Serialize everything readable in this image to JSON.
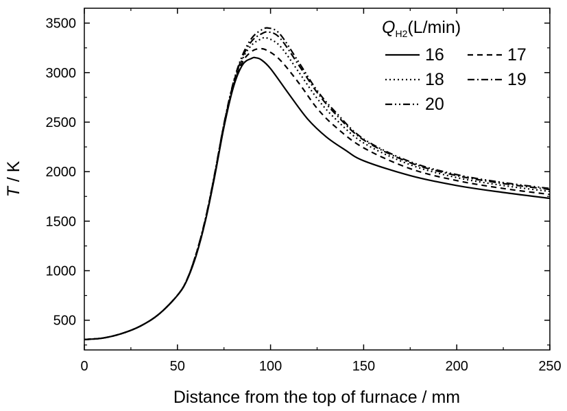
{
  "chart_data": {
    "type": "line",
    "xlabel": "Distance from the top of furnace / mm",
    "ylabel_italic": "T",
    "ylabel_rest": " / K",
    "xlim": [
      0,
      250
    ],
    "ylim": [
      200,
      3650
    ],
    "xticks": [
      "0",
      "50",
      "100",
      "150",
      "200",
      "250"
    ],
    "yticks": [
      "500",
      "1000",
      "1500",
      "2000",
      "2500",
      "3000",
      "3500"
    ],
    "grid": false,
    "legend": {
      "position": "top-right",
      "title_italic": "Q",
      "title_sub": "H2",
      "title_rest": "(L/min)"
    },
    "series": [
      {
        "name": "16",
        "dash": "solid",
        "x": [
          0,
          10,
          20,
          30,
          40,
          50,
          55,
          60,
          65,
          70,
          75,
          80,
          85,
          90,
          92,
          95,
          100,
          110,
          120,
          130,
          140,
          150,
          175,
          200,
          225,
          250
        ],
        "y": [
          305,
          320,
          365,
          440,
          560,
          750,
          900,
          1150,
          1500,
          1950,
          2450,
          2850,
          3080,
          3145,
          3150,
          3130,
          3040,
          2780,
          2530,
          2350,
          2220,
          2110,
          1960,
          1860,
          1790,
          1730
        ]
      },
      {
        "name": "17",
        "dash": "8,6",
        "x": [
          0,
          10,
          20,
          30,
          40,
          50,
          55,
          60,
          65,
          70,
          75,
          80,
          85,
          90,
          94,
          98,
          105,
          115,
          125,
          135,
          150,
          175,
          200,
          225,
          250
        ],
        "y": [
          305,
          320,
          365,
          440,
          560,
          752,
          905,
          1160,
          1510,
          1960,
          2460,
          2860,
          3110,
          3215,
          3240,
          3225,
          3130,
          2900,
          2640,
          2450,
          2240,
          2030,
          1910,
          1830,
          1770
        ]
      },
      {
        "name": "18",
        "dash": "2,4",
        "x": [
          0,
          10,
          20,
          30,
          40,
          50,
          55,
          60,
          65,
          70,
          75,
          80,
          85,
          90,
          95,
          98,
          105,
          115,
          125,
          135,
          150,
          175,
          200,
          225,
          250
        ],
        "y": [
          305,
          320,
          365,
          440,
          560,
          752,
          905,
          1165,
          1515,
          1970,
          2470,
          2880,
          3140,
          3280,
          3340,
          3350,
          3270,
          3010,
          2740,
          2530,
          2290,
          2070,
          1940,
          1860,
          1800
        ]
      },
      {
        "name": "19",
        "dash": "10,4,2,4",
        "x": [
          0,
          10,
          20,
          30,
          40,
          50,
          55,
          60,
          65,
          70,
          75,
          80,
          85,
          90,
          95,
          99,
          105,
          115,
          125,
          135,
          150,
          175,
          200,
          225,
          250
        ],
        "y": [
          305,
          320,
          365,
          440,
          560,
          752,
          905,
          1168,
          1520,
          1975,
          2480,
          2890,
          3160,
          3320,
          3390,
          3410,
          3350,
          3080,
          2800,
          2580,
          2320,
          2090,
          1960,
          1880,
          1820
        ]
      },
      {
        "name": "20",
        "dash": "10,4,2,4,2,4",
        "x": [
          0,
          10,
          20,
          30,
          40,
          50,
          55,
          60,
          65,
          70,
          75,
          80,
          85,
          90,
          95,
          99,
          105,
          115,
          125,
          135,
          150,
          175,
          200,
          225,
          250
        ],
        "y": [
          305,
          320,
          365,
          440,
          560,
          752,
          905,
          1170,
          1522,
          1980,
          2485,
          2900,
          3180,
          3350,
          3430,
          3450,
          3390,
          3110,
          2820,
          2600,
          2330,
          2100,
          1970,
          1890,
          1830
        ]
      }
    ]
  }
}
